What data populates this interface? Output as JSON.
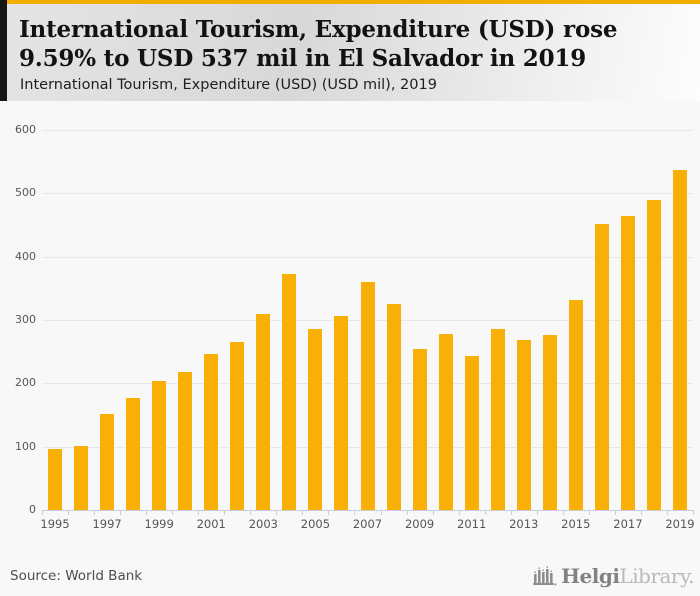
{
  "accent_color": "#f3ac01",
  "header": {
    "title": "International Tourism, Expenditure (USD) rose 9.59% to USD 537 mil in El Salvador in 2019",
    "subtitle": "International Tourism, Expenditure (USD) (USD mil), 2019"
  },
  "chart_data": {
    "type": "bar",
    "title": "International Tourism, Expenditure (USD) rose 9.59% to USD 537 mil in El Salvador in 2019",
    "subtitle": "International Tourism, Expenditure (USD) (USD mil), 2019",
    "categories": [
      "1995",
      "1996",
      "1997",
      "1998",
      "1999",
      "2000",
      "2001",
      "2002",
      "2003",
      "2004",
      "2005",
      "2006",
      "2007",
      "2008",
      "2009",
      "2010",
      "2011",
      "2012",
      "2013",
      "2014",
      "2015",
      "2016",
      "2017",
      "2018",
      "2019"
    ],
    "values": [
      97,
      101,
      152,
      177,
      204,
      218,
      246,
      265,
      310,
      373,
      286,
      306,
      360,
      325,
      254,
      278,
      243,
      286,
      268,
      276,
      331,
      451,
      465,
      490,
      537
    ],
    "bar_color": "#f9b006",
    "ylabel": "",
    "xlabel": "",
    "ylim": [
      0,
      600
    ],
    "ytick_interval": 100,
    "xtick_label_every": 2,
    "grid": true,
    "legend_position": "none"
  },
  "footer": {
    "source": "Source: World Bank",
    "logo": {
      "primary": "Helgi",
      "secondary": "Library."
    }
  }
}
